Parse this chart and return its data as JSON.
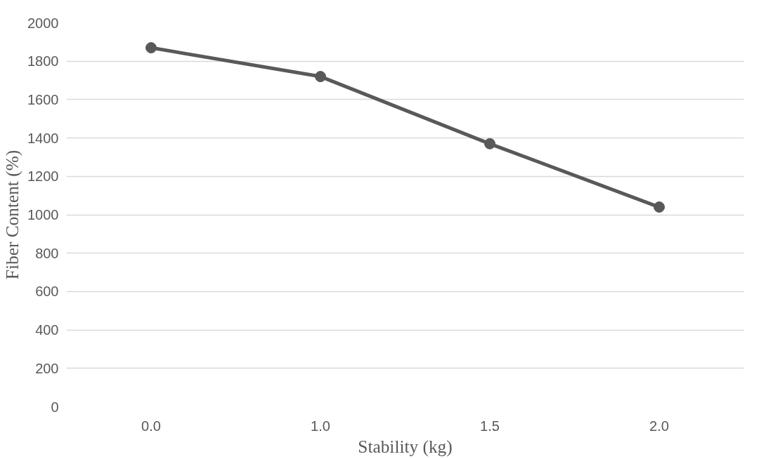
{
  "chart_data": {
    "type": "line",
    "xlabel": "Stability (kg)",
    "ylabel": "Fiber Content (%)",
    "categories": [
      "0.0",
      "1.0",
      "1.5",
      "2.0"
    ],
    "series": [
      {
        "color": "#595959",
        "values": [
          1870,
          1720,
          1370,
          1040
        ]
      }
    ],
    "ylim": [
      0,
      2000
    ],
    "yticks": [
      0,
      200,
      400,
      600,
      800,
      1000,
      1200,
      1400,
      1600,
      1800,
      2000
    ],
    "grid": "y",
    "marker": "circle",
    "line_style": "solid"
  }
}
